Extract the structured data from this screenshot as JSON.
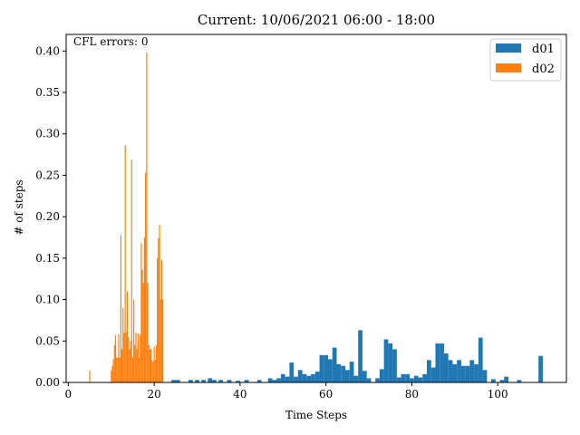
{
  "chart_data": {
    "type": "bar",
    "title": "Current: 10/06/2021 06:00 - 18:00",
    "xlabel": "Time Steps",
    "ylabel": "# of steps",
    "annotation": "CFL errors: 0",
    "xlim": [
      -0.5,
      116
    ],
    "ylim": [
      0,
      0.42
    ],
    "xticks": [
      0,
      20,
      40,
      60,
      80,
      100
    ],
    "yticks": [
      0.0,
      0.05,
      0.1,
      0.15,
      0.2,
      0.25,
      0.3,
      0.35,
      0.4
    ],
    "legend_position": "upper-right",
    "colors": {
      "d01": "#1f77b4",
      "d02": "#ff7f0e",
      "axis": "#000000"
    },
    "series": [
      {
        "name": "d01",
        "bin_width": 1.0,
        "points": [
          [
            24.5,
            0.003
          ],
          [
            25.5,
            0.003
          ],
          [
            28.5,
            0.003
          ],
          [
            30.0,
            0.003
          ],
          [
            31.5,
            0.003
          ],
          [
            33.0,
            0.005
          ],
          [
            34.0,
            0.003
          ],
          [
            35.5,
            0.003
          ],
          [
            37.5,
            0.003
          ],
          [
            39.5,
            0.002
          ],
          [
            41.5,
            0.003
          ],
          [
            44.5,
            0.003
          ],
          [
            47.0,
            0.005
          ],
          [
            48.0,
            0.003
          ],
          [
            49.0,
            0.005
          ],
          [
            50.0,
            0.01
          ],
          [
            51.0,
            0.007
          ],
          [
            52.0,
            0.024
          ],
          [
            53.0,
            0.007
          ],
          [
            54.0,
            0.015
          ],
          [
            55.0,
            0.01
          ],
          [
            56.0,
            0.008
          ],
          [
            57.0,
            0.01
          ],
          [
            58.0,
            0.013
          ],
          [
            59.0,
            0.033
          ],
          [
            60.0,
            0.033
          ],
          [
            61.0,
            0.028
          ],
          [
            62.0,
            0.042
          ],
          [
            63.0,
            0.022
          ],
          [
            64.0,
            0.02
          ],
          [
            65.0,
            0.015
          ],
          [
            66.0,
            0.025
          ],
          [
            67.0,
            0.008
          ],
          [
            68.0,
            0.063
          ],
          [
            69.0,
            0.014
          ],
          [
            70.0,
            0.005
          ],
          [
            72.0,
            0.005
          ],
          [
            73.0,
            0.016
          ],
          [
            74.0,
            0.052
          ],
          [
            75.0,
            0.047
          ],
          [
            76.0,
            0.04
          ],
          [
            77.0,
            0.006
          ],
          [
            78.0,
            0.01
          ],
          [
            79.0,
            0.01
          ],
          [
            80.0,
            0.005
          ],
          [
            81.0,
            0.008
          ],
          [
            82.0,
            0.006
          ],
          [
            83.0,
            0.01
          ],
          [
            84.0,
            0.027
          ],
          [
            85.0,
            0.018
          ],
          [
            86.0,
            0.047
          ],
          [
            87.0,
            0.047
          ],
          [
            88.0,
            0.035
          ],
          [
            89.0,
            0.027
          ],
          [
            90.0,
            0.022
          ],
          [
            91.0,
            0.027
          ],
          [
            92.0,
            0.02
          ],
          [
            93.0,
            0.02
          ],
          [
            94.0,
            0.027
          ],
          [
            95.0,
            0.022
          ],
          [
            96.0,
            0.054
          ],
          [
            97.0,
            0.015
          ],
          [
            99.0,
            0.004
          ],
          [
            101.0,
            0.003
          ],
          [
            102.0,
            0.007
          ],
          [
            105.0,
            0.003
          ],
          [
            110.0,
            0.032
          ]
        ]
      },
      {
        "name": "d02",
        "bin_width": 0.25,
        "points": [
          [
            5.0,
            0.014
          ],
          [
            10.0,
            0.014
          ],
          [
            10.25,
            0.02
          ],
          [
            10.5,
            0.028
          ],
          [
            10.75,
            0.045
          ],
          [
            11.0,
            0.057
          ],
          [
            11.25,
            0.03
          ],
          [
            11.5,
            0.03
          ],
          [
            11.75,
            0.058
          ],
          [
            12.0,
            0.03
          ],
          [
            12.25,
            0.178
          ],
          [
            12.5,
            0.04
          ],
          [
            12.75,
            0.09
          ],
          [
            13.0,
            0.06
          ],
          [
            13.25,
            0.286
          ],
          [
            13.5,
            0.06
          ],
          [
            13.75,
            0.11
          ],
          [
            14.0,
            0.055
          ],
          [
            14.25,
            0.04
          ],
          [
            14.5,
            0.05
          ],
          [
            14.75,
            0.269
          ],
          [
            15.0,
            0.03
          ],
          [
            15.25,
            0.1
          ],
          [
            15.5,
            0.045
          ],
          [
            15.75,
            0.06
          ],
          [
            16.0,
            0.04
          ],
          [
            16.25,
            0.059
          ],
          [
            16.5,
            0.03
          ],
          [
            16.75,
            0.057
          ],
          [
            17.0,
            0.168
          ],
          [
            17.25,
            0.136
          ],
          [
            17.5,
            0.12
          ],
          [
            17.75,
            0.175
          ],
          [
            18.0,
            0.253
          ],
          [
            18.25,
            0.398
          ],
          [
            18.5,
            0.12
          ],
          [
            18.75,
            0.045
          ],
          [
            19.0,
            0.04
          ],
          [
            19.25,
            0.04
          ],
          [
            19.5,
            0.027
          ],
          [
            19.75,
            0.025
          ],
          [
            20.0,
            0.043
          ],
          [
            20.25,
            0.027
          ],
          [
            20.5,
            0.045
          ],
          [
            20.75,
            0.15
          ],
          [
            21.0,
            0.174
          ],
          [
            21.25,
            0.19
          ],
          [
            21.5,
            0.1
          ],
          [
            21.75,
            0.148
          ],
          [
            22.0,
            0.1
          ]
        ]
      }
    ]
  }
}
